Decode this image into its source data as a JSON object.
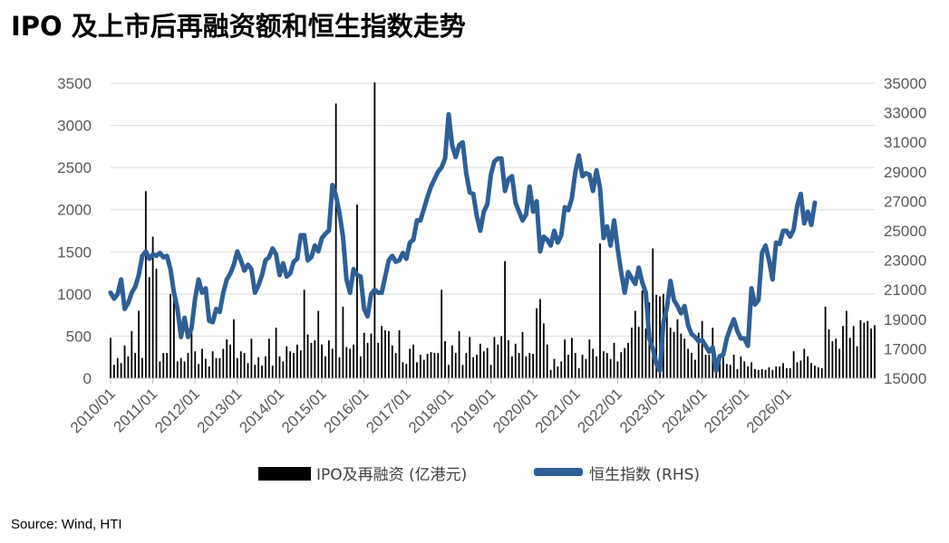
{
  "title": "IPO 及上市后再融资额和恒生指数走势",
  "source": "Source: Wind, HTI",
  "colors": {
    "bar": "#000000",
    "line": "#2f5f96",
    "grid": "#d9d9d9",
    "axis_text": "#595959"
  },
  "chart_data": {
    "type": "bar+line",
    "grid": "horizontal",
    "legend_position": "bottom",
    "left_axis": {
      "min": 0,
      "max": 3500,
      "ticks": [
        "0",
        "500",
        "1000",
        "1500",
        "2000",
        "2500",
        "3000",
        "3500"
      ]
    },
    "right_axis": {
      "min": 15000,
      "max": 35000,
      "ticks": [
        "15000",
        "17000",
        "19000",
        "21000",
        "23000",
        "25000",
        "27000",
        "29000",
        "31000",
        "33000",
        "35000"
      ]
    },
    "x_ticks": [
      "2010/01",
      "2011/01",
      "2012/01",
      "2013/01",
      "2014/01",
      "2015/01",
      "2016/01",
      "2017/01",
      "2018/01",
      "2019/01",
      "2020/01",
      "2021/01",
      "2022/01",
      "2023/01",
      "2024/01",
      "2025/01",
      "2026/01"
    ],
    "series": [
      {
        "name": "IPO及再融资 (亿港元)",
        "type": "bar",
        "axis": "left",
        "start": "2010/01",
        "frequency": "monthly",
        "values": [
          480,
          160,
          240,
          180,
          390,
          260,
          560,
          300,
          800,
          240,
          2220,
          1200,
          1680,
          1300,
          200,
          300,
          300,
          1000,
          1000,
          200,
          240,
          200,
          300,
          560,
          320,
          170,
          350,
          230,
          140,
          320,
          240,
          240,
          350,
          460,
          400,
          700,
          240,
          320,
          300,
          180,
          470,
          160,
          250,
          150,
          260,
          470,
          150,
          600,
          260,
          200,
          380,
          320,
          300,
          400,
          330,
          1050,
          520,
          420,
          450,
          800,
          400,
          260,
          450,
          350,
          3260,
          250,
          850,
          370,
          350,
          400,
          2060,
          260,
          540,
          420,
          530,
          3510,
          420,
          620,
          570,
          560,
          390,
          300,
          570,
          190,
          170,
          350,
          400,
          190,
          280,
          220,
          290,
          310,
          300,
          300,
          1050,
          440,
          160,
          390,
          300,
          560,
          160,
          300,
          490,
          250,
          280,
          410,
          320,
          360,
          160,
          490,
          400,
          500,
          1390,
          450,
          260,
          410,
          300,
          550,
          260,
          300,
          290,
          830,
          940,
          650,
          400,
          100,
          230,
          140,
          200,
          460,
          280,
          480,
          300,
          120,
          280,
          230,
          460,
          350,
          260,
          1600,
          320,
          300,
          230,
          420,
          200,
          310,
          360,
          420,
          600,
          800,
          610,
          1040,
          590,
          900,
          1540,
          990,
          970,
          1000,
          800,
          600,
          550,
          700,
          530,
          470,
          350,
          300,
          220,
          540,
          680,
          280,
          280,
          600,
          190,
          250,
          250,
          170,
          160,
          280,
          110,
          260,
          200,
          140,
          190,
          110,
          100,
          110,
          100,
          130,
          100,
          140,
          140,
          180,
          120,
          120,
          320,
          190,
          210,
          350,
          260,
          180,
          150,
          130,
          120,
          850,
          580,
          440,
          470,
          350,
          620,
          800,
          480,
          620,
          380,
          690,
          660,
          680,
          590,
          630
        ]
      },
      {
        "name": "恒生指数 (RHS)",
        "type": "line",
        "axis": "right",
        "start": "2010/01",
        "frequency": "monthly",
        "values": [
          20800,
          20400,
          20700,
          21700,
          19700,
          20100,
          20800,
          21200,
          22000,
          23300,
          23600,
          23100,
          23400,
          23300,
          23500,
          23200,
          23300,
          22400,
          20800,
          19700,
          17800,
          19100,
          17800,
          18400,
          20400,
          21700,
          20800,
          21100,
          18900,
          18800,
          19700,
          19500,
          20800,
          21700,
          22100,
          22700,
          23600,
          23000,
          22300,
          22700,
          22400,
          20800,
          21300,
          22000,
          23000,
          23200,
          23800,
          23400,
          22000,
          22800,
          21900,
          22100,
          22900,
          23100,
          24700,
          24700,
          23000,
          23200,
          24000,
          23600,
          24500,
          24800,
          25000,
          28100,
          27400,
          26200,
          24600,
          21700,
          20800,
          22400,
          22000,
          21900,
          19700,
          19200,
          20700,
          21000,
          20800,
          20800,
          21900,
          23000,
          23300,
          22900,
          23000,
          23500,
          23100,
          24200,
          24400,
          25700,
          25700,
          26500,
          27300,
          28000,
          28500,
          29000,
          29300,
          29900,
          32900,
          30800,
          30000,
          30800,
          31000,
          28900,
          27600,
          27500,
          26000,
          25000,
          26300,
          26800,
          28800,
          29700,
          29900,
          29900,
          27700,
          28500,
          28700,
          26900,
          26300,
          25700,
          26100,
          28000,
          26300,
          27000,
          23600,
          24600,
          24400,
          24000,
          25000,
          24200,
          24700,
          26600,
          26400,
          27200,
          29000,
          30100,
          28700,
          28900,
          28800,
          27700,
          29100,
          27900,
          24500,
          25300,
          24000,
          25700,
          23800,
          22200,
          20800,
          22200,
          21800,
          21400,
          22500,
          21500,
          20800,
          17700,
          17000,
          16000,
          15500,
          18800,
          19800,
          21600,
          20300,
          19900,
          19400,
          19900,
          18600,
          18000,
          17800,
          17500,
          17600,
          17200,
          16800,
          17100,
          15500,
          16500,
          16600,
          17700,
          18400,
          19000,
          18200,
          17700,
          17700,
          17200,
          21100,
          20000,
          20300,
          23500,
          24000,
          23000,
          21700,
          24200,
          24100,
          25000,
          25000,
          24600,
          25100,
          26700,
          27500,
          25500,
          26300,
          25400,
          26900
        ]
      }
    ]
  }
}
